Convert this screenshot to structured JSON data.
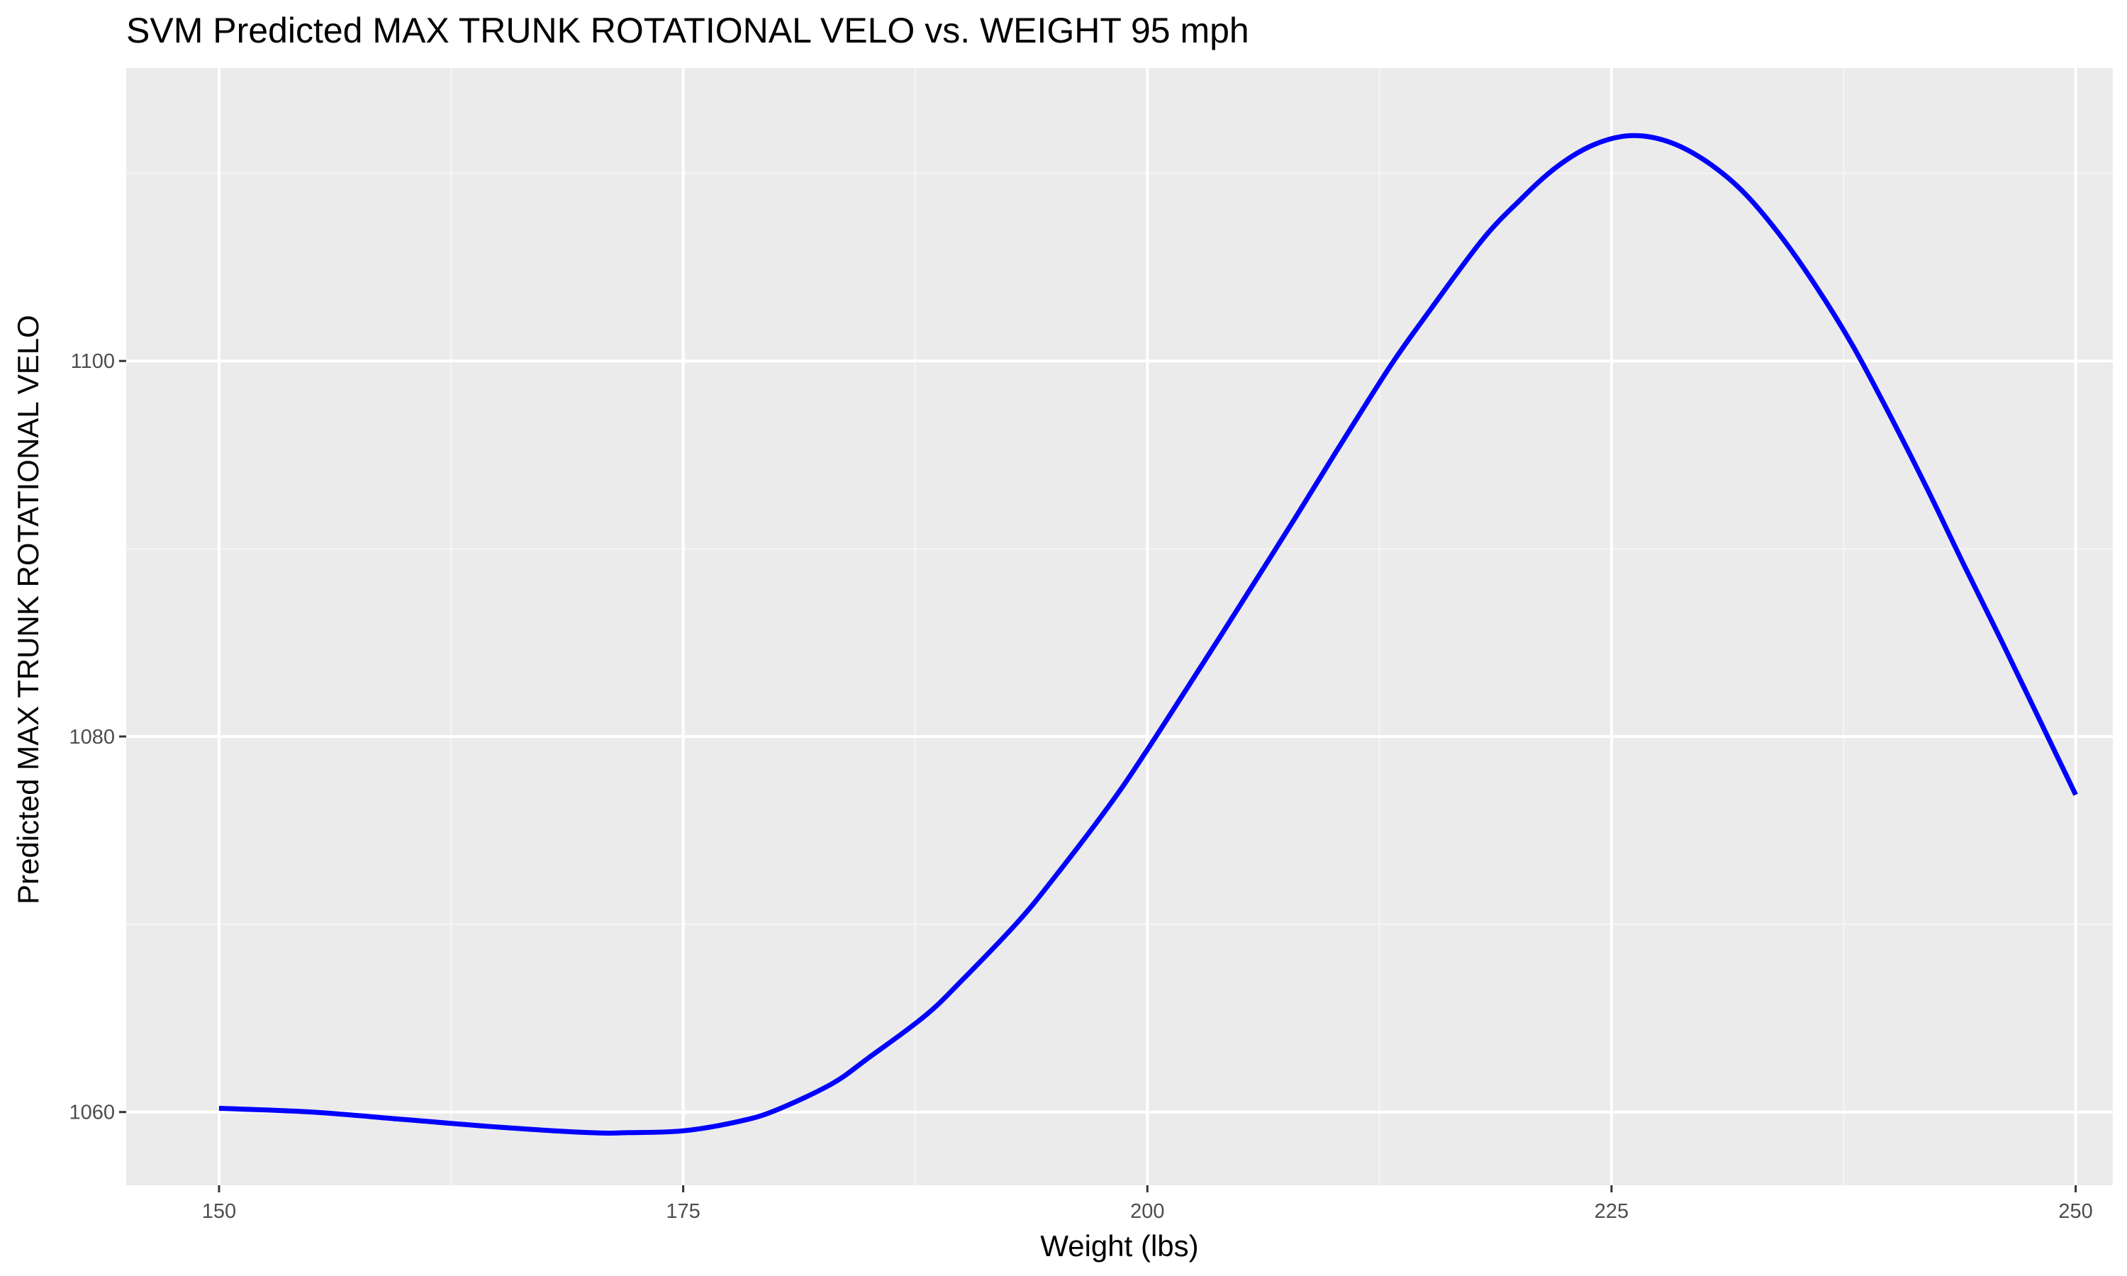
{
  "chart_data": {
    "type": "line",
    "title": "SVM Predicted MAX TRUNK ROTATIONAL VELO vs. WEIGHT 95 mph",
    "xlabel": "Weight (lbs)",
    "ylabel": "Predicted MAX TRUNK ROTATIONAL VELO",
    "xlim": [
      145,
      252
    ],
    "ylim": [
      1056.1,
      1115.6
    ],
    "x_ticks": [
      150,
      175,
      200,
      225,
      250
    ],
    "y_ticks": [
      1060,
      1080,
      1100
    ],
    "grid": true,
    "legend": "none",
    "series": [
      {
        "color": "#0000ff",
        "x": [
          150,
          155,
          160,
          165,
          170,
          172,
          175,
          178,
          180,
          183,
          185,
          188,
          190,
          193,
          195,
          198,
          200,
          203,
          205,
          208,
          210,
          213,
          215,
          218,
          220,
          222,
          224,
          226,
          228,
          230,
          232,
          234,
          236,
          238,
          240,
          242,
          244,
          246,
          248,
          250
        ],
        "y": [
          1060.2,
          1060.0,
          1059.6,
          1059.2,
          1058.9,
          1058.9,
          1059.0,
          1059.5,
          1060.1,
          1061.5,
          1062.9,
          1065.1,
          1067.0,
          1070.1,
          1072.5,
          1076.4,
          1079.3,
          1083.9,
          1087.0,
          1091.7,
          1094.9,
          1099.6,
          1102.4,
          1106.4,
          1108.5,
          1110.3,
          1111.5,
          1112.0,
          1111.7,
          1110.7,
          1109.1,
          1106.8,
          1104.0,
          1100.8,
          1097.1,
          1093.2,
          1089.1,
          1085.1,
          1081.0,
          1076.9
        ]
      }
    ]
  },
  "colors": {
    "panel_background": "#ebebeb",
    "grid_major": "#ffffff",
    "grid_minor": "#f5f5f5",
    "line": "#0000ff"
  }
}
